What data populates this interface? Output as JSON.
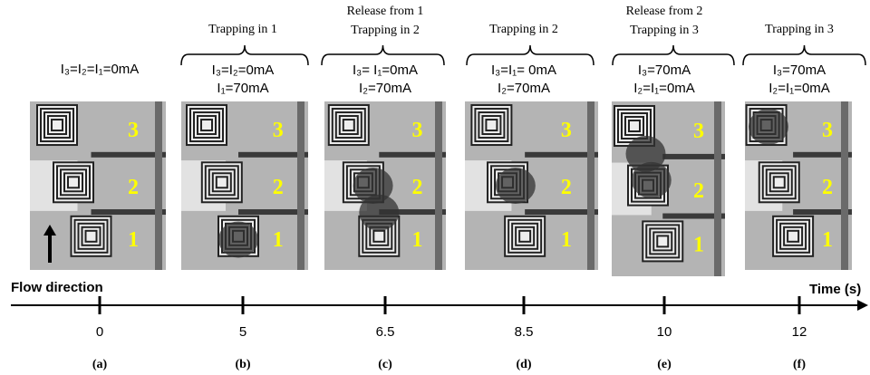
{
  "flow_label": "Flow direction",
  "axis_label": "Time (s)",
  "panels": [
    {
      "label": "(a)",
      "time": 0,
      "caption": [],
      "currents": [
        "I₃=I₂=I₁=0mA"
      ],
      "coil_labels": [
        "3",
        "2",
        "1"
      ]
    },
    {
      "label": "(b)",
      "time": 5,
      "caption": [
        "Trapping in 1"
      ],
      "currents": [
        "I₃=I₂=0mA",
        "I₁=70mA"
      ],
      "coil_labels": [
        "3",
        "2",
        "1"
      ]
    },
    {
      "label": "(c)",
      "time": 6.5,
      "caption": [
        "Release from 1",
        "Trapping in 2"
      ],
      "currents": [
        "I₃= I₁=0mA",
        "I₂=70mA"
      ],
      "coil_labels": [
        "3",
        "2",
        "1"
      ]
    },
    {
      "label": "(d)",
      "time": 8.5,
      "caption": [
        "Trapping in 2"
      ],
      "currents": [
        "I₃=I₁= 0mA",
        "I₂=70mA"
      ],
      "coil_labels": [
        "3",
        "2",
        "1"
      ]
    },
    {
      "label": "(e)",
      "time": 10,
      "caption": [
        "Release from 2",
        "Trapping in 3"
      ],
      "currents": [
        "I₃=70mA",
        "I₂=I₁=0mA"
      ],
      "coil_labels": [
        "3",
        "2",
        "1"
      ]
    },
    {
      "label": "(f)",
      "time": 12,
      "caption": [
        "Trapping in 3"
      ],
      "currents": [
        "I₃=70mA",
        "I₂=I₁=0mA"
      ],
      "coil_labels": [
        "3",
        "2",
        "1"
      ]
    }
  ]
}
